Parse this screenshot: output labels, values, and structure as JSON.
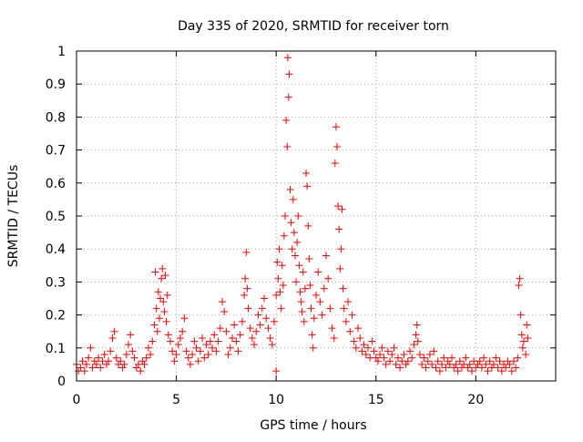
{
  "chart_data": {
    "type": "scatter",
    "title": "Day 335 of 2020, SRMTID for receiver torn",
    "xlabel": "GPS time / hours",
    "ylabel": "SRMTID / TECUs",
    "xlim": [
      0,
      24
    ],
    "ylim": [
      0,
      1
    ],
    "x_ticks": [
      0,
      5,
      10,
      15,
      20
    ],
    "x_tick_labels": [
      "0",
      "5",
      "10",
      "15",
      "20"
    ],
    "y_ticks": [
      0,
      0.1,
      0.2,
      0.3,
      0.4,
      0.5,
      0.6,
      0.7,
      0.8,
      0.9,
      1
    ],
    "y_tick_labels": [
      "0",
      "0.1",
      "0.2",
      "0.3",
      "0.4",
      "0.5",
      "0.6",
      "0.7",
      "0.8",
      "0.9",
      "1"
    ],
    "grid": true,
    "marker": "+",
    "series": [
      {
        "name": "SRMTID",
        "color": "#ff0000",
        "points": [
          [
            0.0,
            0.05
          ],
          [
            0.1,
            0.03
          ],
          [
            0.2,
            0.04
          ],
          [
            0.3,
            0.06
          ],
          [
            0.4,
            0.03
          ],
          [
            0.5,
            0.05
          ],
          [
            0.6,
            0.07
          ],
          [
            0.7,
            0.1
          ],
          [
            0.8,
            0.04
          ],
          [
            0.9,
            0.06
          ],
          [
            1.0,
            0.05
          ],
          [
            1.1,
            0.07
          ],
          [
            1.2,
            0.04
          ],
          [
            1.3,
            0.06
          ],
          [
            1.4,
            0.08
          ],
          [
            1.5,
            0.05
          ],
          [
            1.6,
            0.06
          ],
          [
            1.7,
            0.09
          ],
          [
            1.8,
            0.13
          ],
          [
            1.9,
            0.15
          ],
          [
            2.0,
            0.07
          ],
          [
            2.1,
            0.05
          ],
          [
            2.2,
            0.06
          ],
          [
            2.3,
            0.04
          ],
          [
            2.4,
            0.05
          ],
          [
            2.5,
            0.08
          ],
          [
            2.6,
            0.11
          ],
          [
            2.7,
            0.14
          ],
          [
            2.8,
            0.09
          ],
          [
            2.9,
            0.07
          ],
          [
            3.0,
            0.04
          ],
          [
            3.1,
            0.05
          ],
          [
            3.2,
            0.03
          ],
          [
            3.3,
            0.06
          ],
          [
            3.4,
            0.05
          ],
          [
            3.5,
            0.07
          ],
          [
            3.6,
            0.1
          ],
          [
            3.7,
            0.08
          ],
          [
            3.8,
            0.12
          ],
          [
            3.9,
            0.17
          ],
          [
            3.95,
            0.33
          ],
          [
            4.0,
            0.22
          ],
          [
            4.05,
            0.15
          ],
          [
            4.1,
            0.27
          ],
          [
            4.15,
            0.19
          ],
          [
            4.2,
            0.25
          ],
          [
            4.25,
            0.31
          ],
          [
            4.3,
            0.34
          ],
          [
            4.35,
            0.24
          ],
          [
            4.4,
            0.21
          ],
          [
            4.45,
            0.32
          ],
          [
            4.5,
            0.18
          ],
          [
            4.55,
            0.26
          ],
          [
            4.6,
            0.14
          ],
          [
            4.7,
            0.12
          ],
          [
            4.8,
            0.09
          ],
          [
            4.9,
            0.06
          ],
          [
            5.0,
            0.08
          ],
          [
            5.1,
            0.11
          ],
          [
            5.2,
            0.13
          ],
          [
            5.3,
            0.15
          ],
          [
            5.4,
            0.19
          ],
          [
            5.5,
            0.09
          ],
          [
            5.6,
            0.07
          ],
          [
            5.7,
            0.05
          ],
          [
            5.8,
            0.08
          ],
          [
            5.9,
            0.12
          ],
          [
            6.0,
            0.1
          ],
          [
            6.1,
            0.06
          ],
          [
            6.2,
            0.09
          ],
          [
            6.3,
            0.13
          ],
          [
            6.4,
            0.07
          ],
          [
            6.5,
            0.11
          ],
          [
            6.6,
            0.08
          ],
          [
            6.7,
            0.12
          ],
          [
            6.8,
            0.1
          ],
          [
            6.9,
            0.14
          ],
          [
            7.0,
            0.09
          ],
          [
            7.1,
            0.12
          ],
          [
            7.2,
            0.16
          ],
          [
            7.3,
            0.24
          ],
          [
            7.4,
            0.21
          ],
          [
            7.5,
            0.15
          ],
          [
            7.6,
            0.08
          ],
          [
            7.7,
            0.1
          ],
          [
            7.8,
            0.13
          ],
          [
            7.9,
            0.17
          ],
          [
            8.0,
            0.12
          ],
          [
            8.1,
            0.09
          ],
          [
            8.2,
            0.14
          ],
          [
            8.3,
            0.18
          ],
          [
            8.4,
            0.26
          ],
          [
            8.45,
            0.31
          ],
          [
            8.5,
            0.39
          ],
          [
            8.55,
            0.28
          ],
          [
            8.6,
            0.22
          ],
          [
            8.7,
            0.16
          ],
          [
            8.8,
            0.13
          ],
          [
            8.9,
            0.11
          ],
          [
            9.0,
            0.15
          ],
          [
            9.1,
            0.2
          ],
          [
            9.2,
            0.17
          ],
          [
            9.3,
            0.22
          ],
          [
            9.4,
            0.25
          ],
          [
            9.5,
            0.19
          ],
          [
            9.6,
            0.16
          ],
          [
            9.7,
            0.13
          ],
          [
            9.8,
            0.11
          ],
          [
            9.9,
            0.18
          ],
          [
            10.0,
            0.03
          ],
          [
            10.0,
            0.26
          ],
          [
            10.05,
            0.36
          ],
          [
            10.1,
            0.31
          ],
          [
            10.15,
            0.4
          ],
          [
            10.2,
            0.27
          ],
          [
            10.25,
            0.22
          ],
          [
            10.3,
            0.35
          ],
          [
            10.35,
            0.29
          ],
          [
            10.4,
            0.44
          ],
          [
            10.45,
            0.5
          ],
          [
            10.5,
            0.79
          ],
          [
            10.55,
            0.71
          ],
          [
            10.58,
            0.98
          ],
          [
            10.62,
            0.86
          ],
          [
            10.65,
            0.93
          ],
          [
            10.7,
            0.58
          ],
          [
            10.75,
            0.48
          ],
          [
            10.8,
            0.4
          ],
          [
            10.85,
            0.55
          ],
          [
            10.9,
            0.45
          ],
          [
            10.95,
            0.38
          ],
          [
            11.0,
            0.3
          ],
          [
            11.05,
            0.42
          ],
          [
            11.1,
            0.5
          ],
          [
            11.15,
            0.35
          ],
          [
            11.2,
            0.27
          ],
          [
            11.25,
            0.24
          ],
          [
            11.3,
            0.21
          ],
          [
            11.35,
            0.33
          ],
          [
            11.4,
            0.18
          ],
          [
            11.45,
            0.28
          ],
          [
            11.5,
            0.63
          ],
          [
            11.55,
            0.59
          ],
          [
            11.6,
            0.47
          ],
          [
            11.65,
            0.37
          ],
          [
            11.7,
            0.29
          ],
          [
            11.75,
            0.22
          ],
          [
            11.8,
            0.14
          ],
          [
            11.85,
            0.1
          ],
          [
            11.9,
            0.19
          ],
          [
            12.0,
            0.26
          ],
          [
            12.1,
            0.33
          ],
          [
            12.2,
            0.24
          ],
          [
            12.3,
            0.2
          ],
          [
            12.4,
            0.28
          ],
          [
            12.5,
            0.38
          ],
          [
            12.6,
            0.31
          ],
          [
            12.7,
            0.22
          ],
          [
            12.8,
            0.16
          ],
          [
            12.9,
            0.13
          ],
          [
            12.95,
            0.66
          ],
          [
            13.0,
            0.77
          ],
          [
            13.05,
            0.71
          ],
          [
            13.1,
            0.53
          ],
          [
            13.15,
            0.46
          ],
          [
            13.2,
            0.34
          ],
          [
            13.25,
            0.4
          ],
          [
            13.3,
            0.52
          ],
          [
            13.35,
            0.28
          ],
          [
            13.4,
            0.22
          ],
          [
            13.5,
            0.18
          ],
          [
            13.6,
            0.24
          ],
          [
            13.7,
            0.15
          ],
          [
            13.8,
            0.2
          ],
          [
            13.9,
            0.12
          ],
          [
            14.0,
            0.1
          ],
          [
            14.1,
            0.16
          ],
          [
            14.2,
            0.13
          ],
          [
            14.3,
            0.09
          ],
          [
            14.4,
            0.11
          ],
          [
            14.5,
            0.08
          ],
          [
            14.6,
            0.1
          ],
          [
            14.7,
            0.07
          ],
          [
            14.8,
            0.12
          ],
          [
            14.9,
            0.09
          ],
          [
            15.0,
            0.07
          ],
          [
            15.1,
            0.06
          ],
          [
            15.2,
            0.08
          ],
          [
            15.3,
            0.1
          ],
          [
            15.4,
            0.07
          ],
          [
            15.5,
            0.05
          ],
          [
            15.6,
            0.09
          ],
          [
            15.7,
            0.06
          ],
          [
            15.8,
            0.08
          ],
          [
            15.9,
            0.1
          ],
          [
            16.0,
            0.05
          ],
          [
            16.1,
            0.07
          ],
          [
            16.2,
            0.04
          ],
          [
            16.3,
            0.06
          ],
          [
            16.4,
            0.08
          ],
          [
            16.5,
            0.05
          ],
          [
            16.6,
            0.06
          ],
          [
            16.7,
            0.09
          ],
          [
            16.8,
            0.07
          ],
          [
            16.9,
            0.11
          ],
          [
            17.0,
            0.14
          ],
          [
            17.05,
            0.17
          ],
          [
            17.1,
            0.12
          ],
          [
            17.2,
            0.08
          ],
          [
            17.3,
            0.05
          ],
          [
            17.4,
            0.07
          ],
          [
            17.5,
            0.04
          ],
          [
            17.6,
            0.06
          ],
          [
            17.7,
            0.08
          ],
          [
            17.8,
            0.05
          ],
          [
            17.9,
            0.09
          ],
          [
            18.0,
            0.04
          ],
          [
            18.1,
            0.06
          ],
          [
            18.2,
            0.03
          ],
          [
            18.3,
            0.05
          ],
          [
            18.4,
            0.07
          ],
          [
            18.5,
            0.04
          ],
          [
            18.6,
            0.06
          ],
          [
            18.7,
            0.05
          ],
          [
            18.8,
            0.07
          ],
          [
            18.9,
            0.04
          ],
          [
            19.0,
            0.05
          ],
          [
            19.1,
            0.03
          ],
          [
            19.2,
            0.06
          ],
          [
            19.3,
            0.04
          ],
          [
            19.4,
            0.05
          ],
          [
            19.5,
            0.07
          ],
          [
            19.6,
            0.04
          ],
          [
            19.7,
            0.05
          ],
          [
            19.8,
            0.03
          ],
          [
            19.9,
            0.06
          ],
          [
            20.0,
            0.04
          ],
          [
            20.1,
            0.05
          ],
          [
            20.2,
            0.06
          ],
          [
            20.3,
            0.04
          ],
          [
            20.4,
            0.07
          ],
          [
            20.5,
            0.05
          ],
          [
            20.6,
            0.03
          ],
          [
            20.7,
            0.06
          ],
          [
            20.8,
            0.04
          ],
          [
            20.9,
            0.05
          ],
          [
            21.0,
            0.07
          ],
          [
            21.1,
            0.04
          ],
          [
            21.2,
            0.06
          ],
          [
            21.3,
            0.03
          ],
          [
            21.4,
            0.05
          ],
          [
            21.5,
            0.04
          ],
          [
            21.6,
            0.06
          ],
          [
            21.7,
            0.05
          ],
          [
            21.8,
            0.03
          ],
          [
            21.9,
            0.06
          ],
          [
            22.0,
            0.04
          ],
          [
            22.1,
            0.07
          ],
          [
            22.15,
            0.29
          ],
          [
            22.2,
            0.31
          ],
          [
            22.25,
            0.2
          ],
          [
            22.3,
            0.14
          ],
          [
            22.35,
            0.1
          ],
          [
            22.4,
            0.12
          ],
          [
            22.5,
            0.08
          ],
          [
            22.55,
            0.17
          ],
          [
            22.6,
            0.13
          ]
        ]
      }
    ]
  }
}
